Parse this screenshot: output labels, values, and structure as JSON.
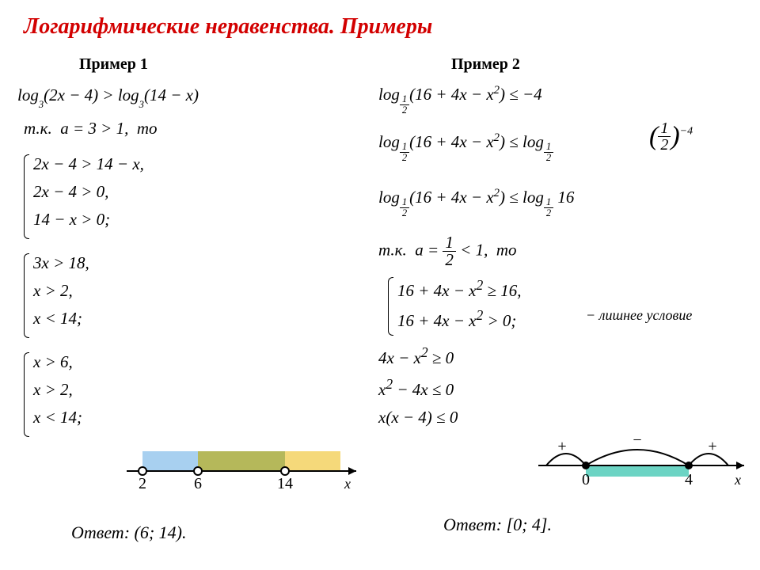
{
  "title": "Логарифмические неравенства.  Примеры",
  "example1": {
    "label": "Пример 1",
    "eq1_html": "<i>log</i><span class='sub'>3</span>(2<i>x</i> − 4) &gt; <i>log</i><span class='sub'>3</span>(14 − <i>x</i>)",
    "cond_html": "т.к.&nbsp;&nbsp;<i>a</i> = 3 &gt; 1,&nbsp; то",
    "sys1": [
      "2x − 4 > 14 − x,",
      "2x − 4 > 0,",
      "14 − x > 0;"
    ],
    "sys2": [
      "3x > 18,",
      "x > 2,",
      "x < 14;"
    ],
    "sys3": [
      "x > 6,",
      "x > 2,",
      "x < 14;"
    ],
    "answer": "Ответ: (6; 14).",
    "diagram": {
      "ticks": [
        2,
        6,
        14
      ],
      "colors": {
        "blue": "#a8d0f0",
        "yellow": "#f5d97a",
        "overlap": "#b5b85a",
        "axis": "#000"
      }
    }
  },
  "example2": {
    "label": "Пример 2",
    "eq1_html": "<i>log</i><span class='sub'><span class='frac'><span class='num'>1</span><span class='den'>2</span></span></span>(16 + 4<i>x</i> − <i>x</i><span class='sup'>2</span>) ≤ −4",
    "eq2_html": "<i>log</i><span class='sub'><span class='frac'><span class='num'>1</span><span class='den'>2</span></span></span>(16 + 4<i>x</i> − <i>x</i><span class='sup'>2</span>) ≤ <i>log</i><span class='sub'><span class='frac'><span class='num'>1</span><span class='den'>2</span></span></span>&nbsp;",
    "eq3_html": "<i>log</i><span class='sub'><span class='frac'><span class='num'>1</span><span class='den'>2</span></span></span>(16 + 4<i>x</i> − <i>x</i><span class='sup'>2</span>) ≤ <i>log</i><span class='sub'><span class='frac'><span class='num'>1</span><span class='den'>2</span></span></span>&nbsp;16",
    "cond_html": "т.к.&nbsp;&nbsp;<i>a</i> = <span class='frac'><span class='num'>1</span><span class='den'>2</span></span> &lt; 1,&nbsp; то",
    "sys1": [
      "16 + 4x − x<sup>2</sup> ≥ 16,",
      "16 + 4x − x<sup>2</sup> > 0;"
    ],
    "extra_note": "− лишнее условие",
    "steps": [
      "4x − x<sup>2</sup> ≥ 0",
      "x<sup>2</sup> − 4x ≤ 0",
      "x(x − 4) ≤ 0"
    ],
    "answer": "Ответ: [0; 4].",
    "diagram": {
      "ticks": [
        0,
        4
      ],
      "signs": [
        "+",
        "−",
        "+"
      ],
      "colors": {
        "fill": "#6cd4c4",
        "axis": "#000"
      }
    }
  }
}
